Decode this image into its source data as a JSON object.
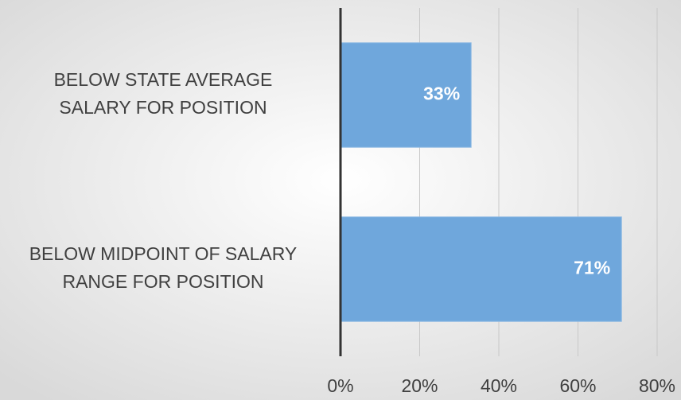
{
  "chart_data": {
    "type": "bar",
    "orientation": "horizontal",
    "categories": [
      [
        "BELOW STATE AVERAGE",
        "SALARY FOR POSITION"
      ],
      [
        "BELOW MIDPOINT OF SALARY",
        "RANGE FOR POSITION"
      ]
    ],
    "values": [
      33,
      71
    ],
    "value_labels": [
      "33%",
      "71%"
    ],
    "color": "#6fa7dc",
    "xlim": [
      0,
      80
    ],
    "xticks": [
      {
        "value": 0,
        "label": "0%"
      },
      {
        "value": 20,
        "label": "20%"
      },
      {
        "value": 40,
        "label": "40%"
      },
      {
        "value": 60,
        "label": "60%"
      },
      {
        "value": 80,
        "label": "80%"
      }
    ],
    "grid": true
  }
}
